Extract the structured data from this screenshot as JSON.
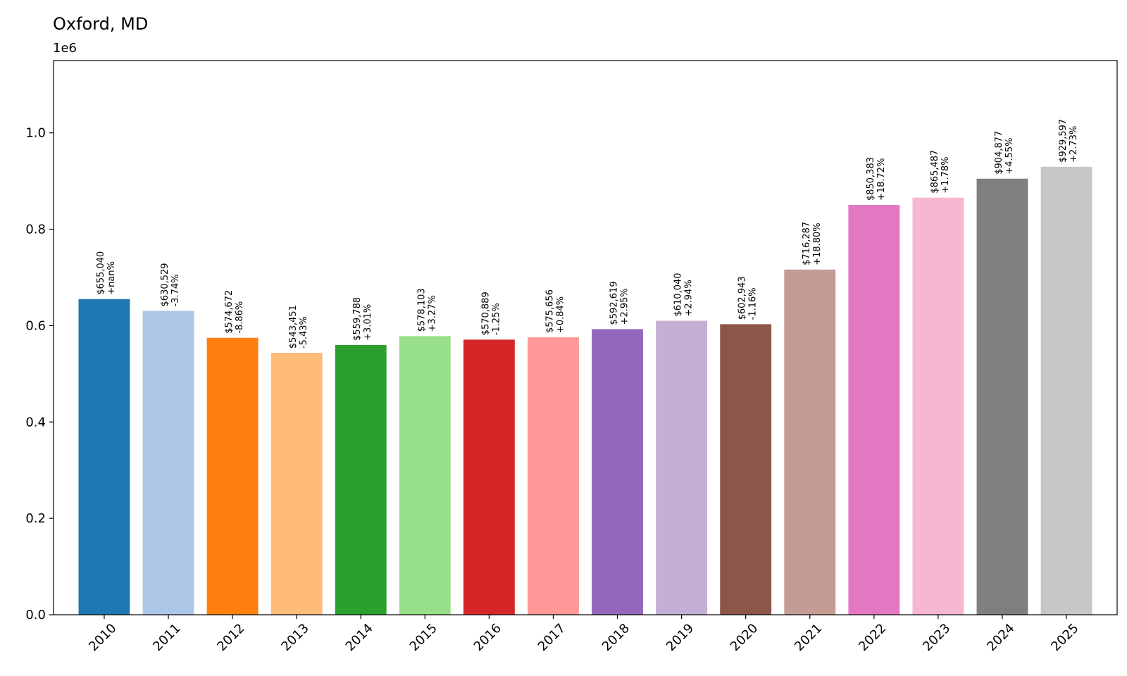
{
  "chart_data": {
    "type": "bar",
    "title": "Oxford, MD",
    "y_offset_label": "1e6",
    "xlabel": "",
    "ylabel": "",
    "ylim": [
      0,
      1.15
    ],
    "yticks": [
      "0.0",
      "0.2",
      "0.4",
      "0.6",
      "0.8",
      "1.0"
    ],
    "ytick_values": [
      0,
      0.2,
      0.4,
      0.6,
      0.8,
      1.0
    ],
    "grid": false,
    "categories": [
      "2010",
      "2011",
      "2012",
      "2013",
      "2014",
      "2015",
      "2016",
      "2017",
      "2018",
      "2019",
      "2020",
      "2021",
      "2022",
      "2023",
      "2024",
      "2025"
    ],
    "values": [
      655040,
      630529,
      574672,
      543451,
      559788,
      578103,
      570889,
      575656,
      592619,
      610040,
      602943,
      716287,
      850383,
      865487,
      904877,
      929597
    ],
    "value_labels": [
      "$655,040",
      "$630,529",
      "$574,672",
      "$543,451",
      "$559,788",
      "$578,103",
      "$570,889",
      "$575,656",
      "$592,619",
      "$610,040",
      "$602,943",
      "$716,287",
      "$850,383",
      "$865,487",
      "$904,877",
      "$929,597"
    ],
    "change_labels": [
      "+nan%",
      "-3.74%",
      "-8.86%",
      "-5.43%",
      "+3.01%",
      "+3.27%",
      "-1.25%",
      "+0.84%",
      "+2.95%",
      "+2.94%",
      "-1.16%",
      "+18.80%",
      "+18.72%",
      "+1.78%",
      "+4.55%",
      "+2.73%"
    ],
    "colors": [
      "#1f77b4",
      "#aec7e8",
      "#ff7f0e",
      "#ffbb78",
      "#2ca02c",
      "#98df8a",
      "#d62728",
      "#ff9896",
      "#9467bd",
      "#c5b0d5",
      "#8c564b",
      "#c49c94",
      "#e377c2",
      "#f7b6d2",
      "#7f7f7f",
      "#c7c7c7"
    ]
  }
}
